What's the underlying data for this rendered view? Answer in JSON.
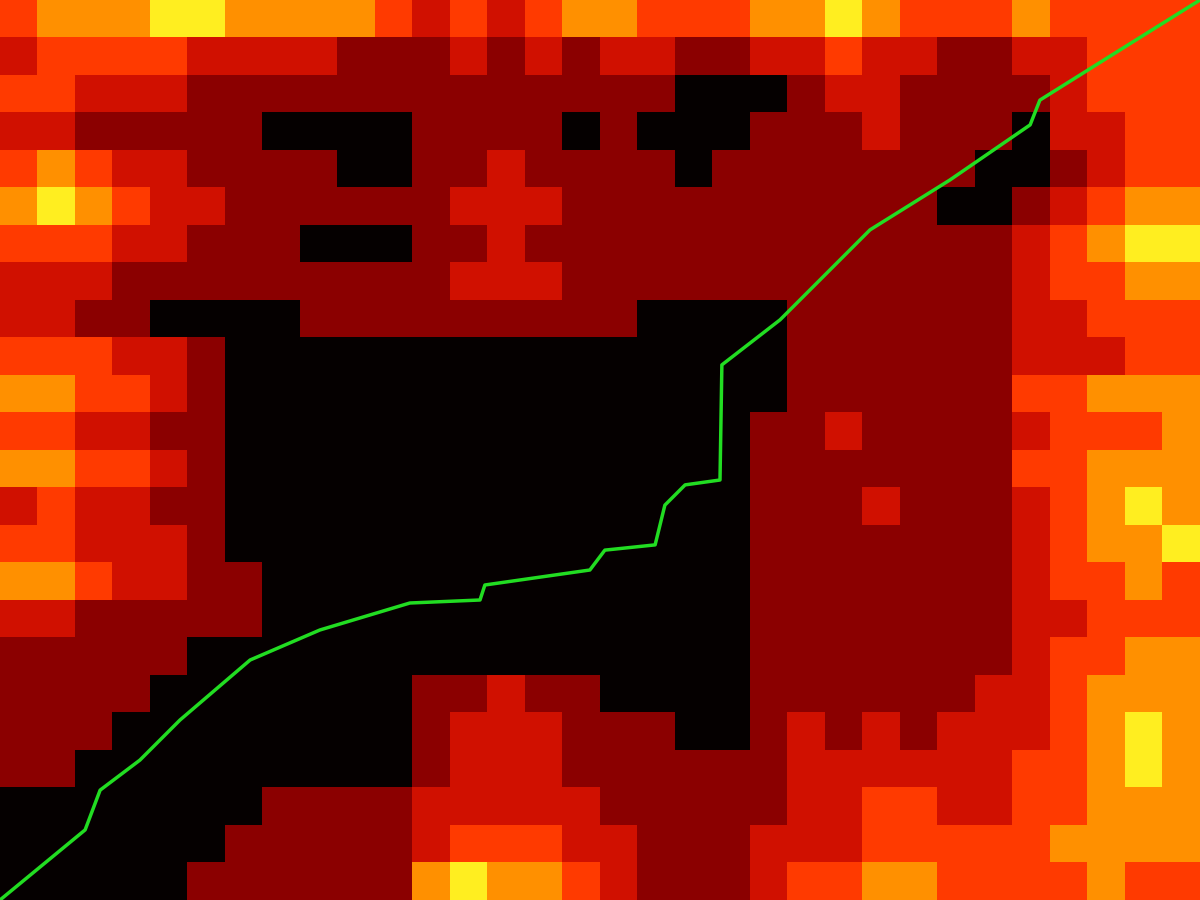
{
  "chart_data": {
    "type": "heatmap_path",
    "tick_labels": false,
    "xlim": [
      0,
      32
    ],
    "ylim": [
      0,
      24
    ],
    "zlim": [
      0,
      5
    ],
    "cells": [
      [
        3,
        4,
        4,
        4,
        5,
        5,
        4,
        4,
        4,
        4,
        3,
        2,
        3,
        2,
        3,
        4,
        4,
        3,
        3,
        3,
        4,
        4,
        5,
        4,
        3,
        3,
        3,
        4,
        3,
        3,
        3,
        3
      ],
      [
        2,
        3,
        3,
        3,
        3,
        2,
        2,
        2,
        2,
        1,
        1,
        1,
        2,
        1,
        2,
        1,
        2,
        2,
        1,
        1,
        2,
        2,
        3,
        2,
        2,
        1,
        1,
        2,
        2,
        3,
        3,
        3
      ],
      [
        3,
        3,
        2,
        2,
        2,
        1,
        1,
        1,
        1,
        1,
        1,
        1,
        1,
        1,
        1,
        1,
        1,
        1,
        0,
        0,
        0,
        1,
        2,
        2,
        1,
        1,
        1,
        1,
        2,
        3,
        3,
        3
      ],
      [
        2,
        2,
        1,
        1,
        1,
        1,
        1,
        0,
        0,
        0,
        0,
        1,
        1,
        1,
        1,
        0,
        1,
        0,
        0,
        0,
        1,
        1,
        1,
        2,
        1,
        1,
        1,
        0,
        2,
        2,
        3,
        3
      ],
      [
        3,
        4,
        3,
        2,
        2,
        1,
        1,
        1,
        1,
        0,
        0,
        1,
        1,
        2,
        1,
        1,
        1,
        1,
        0,
        1,
        1,
        1,
        1,
        1,
        1,
        1,
        0,
        0,
        1,
        2,
        3,
        3
      ],
      [
        4,
        5,
        4,
        3,
        2,
        2,
        1,
        1,
        1,
        1,
        1,
        1,
        2,
        2,
        2,
        1,
        1,
        1,
        1,
        1,
        1,
        1,
        1,
        1,
        1,
        0,
        0,
        1,
        2,
        3,
        4,
        4
      ],
      [
        3,
        3,
        3,
        2,
        2,
        1,
        1,
        1,
        0,
        0,
        0,
        1,
        1,
        2,
        1,
        1,
        1,
        1,
        1,
        1,
        1,
        1,
        1,
        1,
        1,
        1,
        1,
        2,
        3,
        4,
        5,
        5
      ],
      [
        2,
        2,
        2,
        1,
        1,
        1,
        1,
        1,
        1,
        1,
        1,
        1,
        2,
        2,
        2,
        1,
        1,
        1,
        1,
        1,
        1,
        1,
        1,
        1,
        1,
        1,
        1,
        2,
        3,
        3,
        4,
        4
      ],
      [
        2,
        2,
        1,
        1,
        0,
        0,
        0,
        0,
        1,
        1,
        1,
        1,
        1,
        1,
        1,
        1,
        1,
        0,
        0,
        0,
        0,
        1,
        1,
        1,
        1,
        1,
        1,
        2,
        2,
        3,
        3,
        3
      ],
      [
        3,
        3,
        3,
        2,
        2,
        1,
        0,
        0,
        0,
        0,
        0,
        0,
        0,
        0,
        0,
        0,
        0,
        0,
        0,
        0,
        0,
        1,
        1,
        1,
        1,
        1,
        1,
        2,
        2,
        2,
        3,
        3
      ],
      [
        4,
        4,
        3,
        3,
        2,
        1,
        0,
        0,
        0,
        0,
        0,
        0,
        0,
        0,
        0,
        0,
        0,
        0,
        0,
        0,
        0,
        1,
        1,
        1,
        1,
        1,
        1,
        3,
        3,
        4,
        4,
        4
      ],
      [
        3,
        3,
        2,
        2,
        1,
        1,
        0,
        0,
        0,
        0,
        0,
        0,
        0,
        0,
        0,
        0,
        0,
        0,
        0,
        0,
        1,
        1,
        2,
        1,
        1,
        1,
        1,
        2,
        3,
        3,
        3,
        4
      ],
      [
        4,
        4,
        3,
        3,
        2,
        1,
        0,
        0,
        0,
        0,
        0,
        0,
        0,
        0,
        0,
        0,
        0,
        0,
        0,
        0,
        1,
        1,
        1,
        1,
        1,
        1,
        1,
        3,
        3,
        4,
        4,
        4
      ],
      [
        2,
        3,
        2,
        2,
        1,
        1,
        0,
        0,
        0,
        0,
        0,
        0,
        0,
        0,
        0,
        0,
        0,
        0,
        0,
        0,
        1,
        1,
        1,
        2,
        1,
        1,
        1,
        2,
        3,
        4,
        5,
        4
      ],
      [
        3,
        3,
        2,
        2,
        2,
        1,
        0,
        0,
        0,
        0,
        0,
        0,
        0,
        0,
        0,
        0,
        0,
        0,
        0,
        0,
        1,
        1,
        1,
        1,
        1,
        1,
        1,
        2,
        3,
        4,
        4,
        5
      ],
      [
        4,
        4,
        3,
        2,
        2,
        1,
        1,
        0,
        0,
        0,
        0,
        0,
        0,
        0,
        0,
        0,
        0,
        0,
        0,
        0,
        1,
        1,
        1,
        1,
        1,
        1,
        1,
        2,
        3,
        3,
        4,
        3
      ],
      [
        2,
        2,
        1,
        1,
        1,
        1,
        1,
        0,
        0,
        0,
        0,
        0,
        0,
        0,
        0,
        0,
        0,
        0,
        0,
        0,
        1,
        1,
        1,
        1,
        1,
        1,
        1,
        2,
        2,
        3,
        3,
        3
      ],
      [
        1,
        1,
        1,
        1,
        1,
        0,
        0,
        0,
        0,
        0,
        0,
        0,
        0,
        0,
        0,
        0,
        0,
        0,
        0,
        0,
        1,
        1,
        1,
        1,
        1,
        1,
        1,
        2,
        3,
        3,
        4,
        4
      ],
      [
        1,
        1,
        1,
        1,
        0,
        0,
        0,
        0,
        0,
        0,
        0,
        1,
        1,
        2,
        1,
        1,
        0,
        0,
        0,
        0,
        1,
        1,
        1,
        1,
        1,
        1,
        2,
        2,
        3,
        4,
        4,
        4
      ],
      [
        1,
        1,
        1,
        0,
        0,
        0,
        0,
        0,
        0,
        0,
        0,
        1,
        2,
        2,
        2,
        1,
        1,
        1,
        0,
        0,
        1,
        2,
        1,
        2,
        1,
        2,
        2,
        2,
        3,
        4,
        5,
        4
      ],
      [
        1,
        1,
        0,
        0,
        0,
        0,
        0,
        0,
        0,
        0,
        0,
        1,
        2,
        2,
        2,
        1,
        1,
        1,
        1,
        1,
        1,
        2,
        2,
        2,
        2,
        2,
        2,
        3,
        3,
        4,
        5,
        4
      ],
      [
        0,
        0,
        0,
        0,
        0,
        0,
        0,
        1,
        1,
        1,
        1,
        2,
        2,
        2,
        2,
        2,
        1,
        1,
        1,
        1,
        1,
        2,
        2,
        3,
        3,
        2,
        2,
        3,
        3,
        4,
        4,
        4
      ],
      [
        0,
        0,
        0,
        0,
        0,
        0,
        1,
        1,
        1,
        1,
        1,
        2,
        3,
        3,
        3,
        2,
        2,
        1,
        1,
        1,
        2,
        2,
        2,
        3,
        3,
        3,
        3,
        3,
        4,
        4,
        4,
        4
      ],
      [
        0,
        0,
        0,
        0,
        0,
        1,
        1,
        1,
        1,
        1,
        1,
        4,
        5,
        4,
        4,
        3,
        2,
        1,
        1,
        1,
        2,
        3,
        3,
        4,
        4,
        3,
        3,
        3,
        3,
        4,
        3,
        3
      ]
    ],
    "path": {
      "color": "#22dd22",
      "x": [
        0,
        2.27,
        2.67,
        3.73,
        4.8,
        6.67,
        8.53,
        10.93,
        12.8,
        12.93,
        15.73,
        16.13,
        17.47,
        17.73,
        18.27,
        19.2,
        19.25,
        20.8,
        23.2,
        25.33,
        27.47,
        27.73,
        29.87,
        32
      ],
      "y": [
        0,
        1.87,
        2.93,
        3.73,
        4.8,
        6.4,
        7.2,
        7.92,
        8.0,
        8.4,
        8.8,
        9.33,
        9.47,
        10.53,
        11.07,
        11.2,
        14.27,
        15.47,
        17.87,
        19.2,
        20.67,
        21.33,
        22.67,
        24
      ]
    }
  }
}
